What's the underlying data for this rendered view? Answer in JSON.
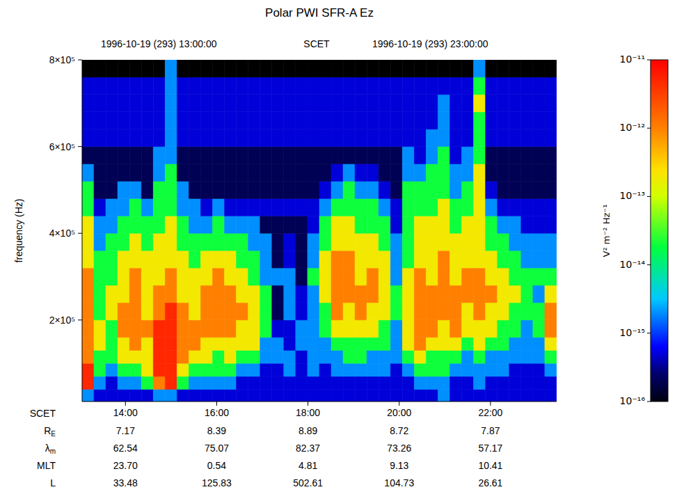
{
  "chart_data": {
    "type": "heatmap",
    "title": "Polar PWI SFR-A Ez",
    "top_labels": [
      "1996-10-19 (293) 13:00:00",
      "SCET",
      "1996-10-19 (293) 23:00:00"
    ],
    "xlabel": "SCET",
    "ylabel": "frequency (Hz)",
    "xlim": [
      13.05,
      23.45
    ],
    "xticks": [
      {
        "value": 14,
        "label": "14:00"
      },
      {
        "value": 16,
        "label": "16:00"
      },
      {
        "value": 18,
        "label": "18:00"
      },
      {
        "value": 20,
        "label": "20:00"
      },
      {
        "value": 22,
        "label": "22:00"
      }
    ],
    "ylim": [
      12000,
      800000
    ],
    "yticks": [
      {
        "value": 200000,
        "label": "2×10⁵"
      },
      {
        "value": 400000,
        "label": "4×10⁵"
      },
      {
        "value": 600000,
        "label": "6×10⁵"
      },
      {
        "value": 800000,
        "label": "8×10⁵"
      }
    ],
    "ephemeris": [
      {
        "label": "R",
        "sub": "E",
        "values": [
          "7.17",
          "8.39",
          "8.89",
          "8.72",
          "7.87"
        ]
      },
      {
        "label": "λ",
        "sub": "m",
        "values": [
          "62.54",
          "75.07",
          "82.37",
          "73.26",
          "57.17"
        ]
      },
      {
        "label": "MLT",
        "values": [
          "23.70",
          "0.54",
          "4.81",
          "9.13",
          "10.41"
        ]
      },
      {
        "label": "L",
        "values": [
          "33.48",
          "125.83",
          "502.61",
          "104.73",
          "26.61"
        ]
      }
    ],
    "colorbar": {
      "lim": [
        1e-16,
        1e-11
      ],
      "log": true,
      "ticks": [
        {
          "value": 1e-16,
          "label": "10⁻¹⁶"
        },
        {
          "value": 1e-15,
          "label": "10⁻¹⁵"
        },
        {
          "value": 1e-14,
          "label": "10⁻¹⁴"
        },
        {
          "value": 1e-13,
          "label": "10⁻¹³"
        },
        {
          "value": 1e-12,
          "label": "10⁻¹²"
        },
        {
          "value": 1e-11,
          "label": "10⁻¹¹"
        }
      ],
      "label": "V² m⁻² Hz⁻¹"
    },
    "x_bins": [
      13.05,
      13.31,
      13.57,
      13.83,
      14.09,
      14.35,
      14.61,
      14.87,
      15.13,
      15.39,
      15.65,
      15.91,
      16.17,
      16.43,
      16.69,
      16.95,
      17.21,
      17.47,
      17.73,
      17.99,
      18.25,
      18.51,
      18.77,
      19.03,
      19.29,
      19.55,
      19.81,
      20.07,
      20.33,
      20.59,
      20.85,
      21.11,
      21.37,
      21.63,
      21.89,
      22.15,
      22.41,
      22.67,
      22.93,
      23.19,
      23.45
    ],
    "y_bins": [
      12000,
      40000,
      70000,
      100000,
      130000,
      160000,
      200000,
      240000,
      280000,
      320000,
      360000,
      400000,
      440000,
      480000,
      520000,
      560000,
      600000,
      640000,
      680000,
      720000,
      760000,
      800000
    ],
    "cells": [
      [
        2e-15,
        5e-12,
        5e-12,
        1e-12,
        1e-12,
        1e-12,
        1e-12,
        1e-12,
        1e-12,
        2e-13,
        2e-13,
        2e-13,
        2e-14,
        2e-14,
        2e-15,
        2e-16,
        5e-16,
        5e-16,
        5e-16,
        5e-16,
        5e-17
      ],
      [
        5e-16,
        2e-15,
        2e-14,
        2e-14,
        2e-13,
        2e-13,
        2e-14,
        2e-14,
        2e-14,
        2e-14,
        2e-15,
        2e-15,
        5e-16,
        2e-16,
        2e-16,
        2e-16,
        5e-16,
        5e-16,
        5e-16,
        5e-16,
        5e-17
      ],
      [
        5e-16,
        5e-16,
        2e-15,
        2e-14,
        2e-14,
        2e-14,
        2e-13,
        2e-13,
        2e-14,
        2e-14,
        2e-14,
        2e-15,
        2e-15,
        2e-16,
        2e-16,
        2e-16,
        5e-16,
        5e-16,
        5e-16,
        5e-16,
        5e-17
      ],
      [
        5e-16,
        2e-15,
        2e-14,
        2e-13,
        2e-13,
        1e-12,
        1e-12,
        2e-13,
        2e-13,
        2e-13,
        2e-14,
        2e-14,
        2e-15,
        2e-15,
        2e-16,
        2e-16,
        5e-16,
        5e-16,
        5e-16,
        5e-16,
        5e-17
      ],
      [
        5e-16,
        2e-15,
        2e-14,
        2e-13,
        1e-12,
        1e-12,
        1e-12,
        1e-12,
        1e-12,
        2e-13,
        2e-13,
        2e-14,
        2e-14,
        2e-15,
        2e-16,
        2e-16,
        5e-16,
        5e-16,
        5e-16,
        5e-16,
        5e-17
      ],
      [
        5e-16,
        2e-14,
        2e-13,
        2e-13,
        2e-13,
        1e-12,
        2e-13,
        2e-13,
        2e-13,
        2e-13,
        2e-14,
        2e-14,
        2e-15,
        2e-16,
        2e-16,
        2e-16,
        5e-16,
        5e-16,
        5e-16,
        5e-16,
        5e-17
      ],
      [
        2e-15,
        1e-12,
        5e-12,
        5e-12,
        5e-12,
        5e-12,
        1e-12,
        1e-12,
        2e-13,
        2e-13,
        2e-13,
        2e-14,
        2e-14,
        2e-14,
        2e-15,
        2e-15,
        5e-16,
        5e-16,
        5e-16,
        5e-16,
        5e-17
      ],
      [
        2e-15,
        5e-12,
        5e-12,
        5e-12,
        5e-12,
        5e-12,
        5e-12,
        1e-12,
        1e-12,
        2e-13,
        2e-13,
        2e-13,
        2e-14,
        2e-14,
        2e-14,
        2e-15,
        2e-15,
        2e-15,
        2e-15,
        2e-15,
        2e-15
      ],
      [
        5e-16,
        2e-14,
        2e-13,
        1e-12,
        1e-12,
        1e-12,
        1e-12,
        2e-13,
        2e-13,
        2e-13,
        2e-14,
        2e-14,
        2e-15,
        2e-15,
        2e-16,
        2e-16,
        5e-16,
        5e-16,
        5e-16,
        5e-16,
        5e-17
      ],
      [
        5e-16,
        2e-15,
        2e-14,
        2e-13,
        1e-12,
        1e-12,
        2e-13,
        2e-13,
        2e-13,
        2e-14,
        2e-14,
        2e-15,
        2e-15,
        2e-16,
        2e-16,
        2e-16,
        5e-16,
        5e-16,
        5e-16,
        5e-16,
        5e-17
      ],
      [
        5e-16,
        2e-15,
        2e-14,
        2e-13,
        2e-13,
        1e-12,
        1e-12,
        1e-12,
        2e-13,
        2e-13,
        2e-14,
        2e-15,
        5e-16,
        2e-16,
        2e-16,
        2e-16,
        5e-16,
        5e-16,
        5e-16,
        5e-16,
        5e-17
      ],
      [
        5e-16,
        2e-15,
        2e-14,
        2e-14,
        2e-13,
        1e-12,
        1e-12,
        1e-12,
        1e-12,
        2e-13,
        2e-14,
        2e-14,
        2e-15,
        2e-16,
        2e-16,
        2e-16,
        5e-16,
        5e-16,
        5e-16,
        5e-16,
        5e-17
      ],
      [
        5e-16,
        2e-15,
        2e-14,
        2e-13,
        2e-13,
        1e-12,
        1e-12,
        1e-12,
        2e-13,
        2e-13,
        2e-14,
        2e-15,
        5e-16,
        2e-16,
        2e-16,
        2e-16,
        5e-16,
        5e-16,
        5e-16,
        5e-16,
        5e-17
      ],
      [
        5e-16,
        5e-16,
        2e-15,
        2e-14,
        2e-13,
        2e-13,
        1e-12,
        2e-13,
        2e-13,
        2e-14,
        2e-14,
        2e-15,
        5e-16,
        2e-16,
        2e-16,
        2e-16,
        5e-16,
        5e-16,
        5e-16,
        5e-16,
        5e-17
      ],
      [
        5e-16,
        5e-16,
        2e-15,
        2e-14,
        2e-13,
        2e-13,
        2e-13,
        2e-13,
        2e-14,
        2e-14,
        2e-15,
        2e-15,
        5e-16,
        2e-16,
        2e-16,
        2e-16,
        5e-16,
        5e-16,
        5e-16,
        5e-16,
        5e-17
      ],
      [
        5e-16,
        5e-16,
        5e-16,
        2e-15,
        2e-15,
        2e-14,
        2e-14,
        2e-14,
        2e-15,
        2e-15,
        2e-15,
        2e-16,
        5e-16,
        2e-16,
        2e-16,
        2e-16,
        5e-16,
        5e-16,
        5e-16,
        5e-16,
        5e-17
      ],
      [
        5e-16,
        5e-16,
        5e-16,
        2e-15,
        2e-15,
        5e-16,
        2e-16,
        2e-16,
        2e-15,
        2e-16,
        2e-16,
        2e-16,
        5e-16,
        2e-16,
        2e-16,
        2e-16,
        5e-16,
        5e-16,
        5e-16,
        5e-16,
        5e-17
      ],
      [
        5e-16,
        5e-16,
        2e-15,
        2e-15,
        5e-16,
        5e-16,
        2e-15,
        2e-15,
        2e-15,
        5e-16,
        5e-16,
        2e-16,
        5e-16,
        2e-16,
        2e-16,
        2e-16,
        5e-16,
        5e-16,
        5e-16,
        5e-16,
        5e-17
      ],
      [
        5e-16,
        5e-16,
        5e-16,
        5e-16,
        2e-15,
        2e-15,
        5e-16,
        5e-16,
        2e-16,
        2e-16,
        2e-16,
        2e-16,
        5e-16,
        2e-16,
        2e-16,
        2e-16,
        5e-16,
        5e-16,
        5e-16,
        5e-16,
        5e-17
      ],
      [
        5e-16,
        5e-16,
        2e-15,
        2e-15,
        2e-15,
        2e-15,
        2e-15,
        2e-15,
        2e-14,
        2e-15,
        2e-15,
        5e-16,
        5e-16,
        2e-16,
        2e-16,
        2e-16,
        5e-16,
        5e-16,
        5e-16,
        5e-16,
        5e-17
      ],
      [
        5e-16,
        5e-16,
        5e-16,
        2e-15,
        2e-15,
        2e-14,
        2e-14,
        2e-13,
        2e-13,
        2e-13,
        2e-14,
        2e-14,
        2e-15,
        5e-16,
        2e-16,
        2e-16,
        5e-16,
        5e-16,
        5e-16,
        5e-16,
        5e-17
      ],
      [
        5e-16,
        5e-16,
        2e-15,
        2e-15,
        2e-14,
        2e-13,
        1e-12,
        1e-12,
        1e-12,
        1e-12,
        2e-13,
        2e-13,
        2e-14,
        2e-15,
        5e-16,
        2e-16,
        5e-16,
        5e-16,
        5e-16,
        5e-16,
        5e-17
      ],
      [
        5e-16,
        5e-16,
        2e-15,
        2e-14,
        2e-14,
        2e-13,
        2e-13,
        1e-12,
        1e-12,
        1e-12,
        2e-13,
        2e-13,
        2e-14,
        2e-14,
        2e-15,
        2e-16,
        5e-16,
        5e-16,
        5e-16,
        5e-16,
        5e-17
      ],
      [
        5e-16,
        5e-16,
        2e-15,
        2e-14,
        2e-14,
        2e-13,
        1e-12,
        1e-12,
        2e-13,
        2e-13,
        2e-13,
        2e-14,
        2e-14,
        2e-15,
        5e-16,
        2e-16,
        5e-16,
        5e-16,
        5e-16,
        5e-16,
        5e-17
      ],
      [
        5e-16,
        5e-16,
        2e-15,
        2e-15,
        2e-14,
        2e-13,
        2e-13,
        1e-12,
        1e-12,
        2e-13,
        2e-13,
        2e-14,
        2e-14,
        2e-15,
        5e-16,
        2e-16,
        5e-16,
        5e-16,
        5e-16,
        5e-16,
        5e-17
      ],
      [
        5e-16,
        5e-16,
        2e-15,
        2e-15,
        2e-14,
        2e-14,
        2e-13,
        2e-13,
        2e-13,
        2e-13,
        2e-14,
        2e-14,
        2e-15,
        5e-16,
        2e-16,
        2e-16,
        5e-16,
        5e-16,
        5e-16,
        5e-16,
        5e-17
      ],
      [
        5e-16,
        5e-16,
        5e-16,
        2e-15,
        2e-15,
        2e-15,
        2e-14,
        2e-14,
        2e-15,
        2e-15,
        2e-15,
        5e-16,
        5e-16,
        2e-16,
        2e-16,
        2e-16,
        5e-16,
        5e-16,
        5e-16,
        5e-16,
        5e-17
      ],
      [
        5e-16,
        5e-16,
        2e-15,
        2e-14,
        2e-13,
        2e-13,
        2e-13,
        2e-13,
        2e-13,
        2e-14,
        2e-14,
        2e-14,
        2e-14,
        2e-14,
        2e-15,
        2e-15,
        5e-16,
        5e-16,
        5e-16,
        5e-16,
        5e-17
      ],
      [
        5e-16,
        2e-15,
        2e-14,
        2e-13,
        1e-12,
        1e-12,
        1e-12,
        1e-12,
        1e-12,
        2e-13,
        2e-13,
        2e-13,
        2e-14,
        2e-14,
        2e-15,
        5e-16,
        5e-16,
        5e-16,
        5e-16,
        5e-16,
        5e-17
      ],
      [
        5e-16,
        2e-15,
        2e-14,
        2e-14,
        2e-13,
        1e-12,
        1e-12,
        1e-12,
        2e-13,
        2e-13,
        2e-13,
        2e-13,
        2e-14,
        2e-14,
        2e-14,
        2e-15,
        2e-15,
        5e-16,
        5e-16,
        5e-16,
        5e-17
      ],
      [
        2e-15,
        2e-15,
        2e-14,
        2e-14,
        2e-13,
        2e-13,
        1e-12,
        1e-12,
        1e-12,
        1e-12,
        2e-13,
        2e-13,
        2e-13,
        2e-14,
        2e-14,
        2e-14,
        2e-15,
        2e-15,
        2e-15,
        5e-16,
        5e-17
      ],
      [
        5e-16,
        5e-16,
        2e-15,
        2e-14,
        2e-13,
        1e-12,
        1e-12,
        1e-12,
        2e-13,
        2e-13,
        2e-13,
        2e-14,
        2e-14,
        2e-15,
        2e-15,
        5e-16,
        5e-16,
        5e-16,
        5e-16,
        5e-16,
        5e-17
      ],
      [
        5e-16,
        5e-16,
        2e-15,
        2e-15,
        2e-14,
        2e-13,
        2e-13,
        1e-12,
        1e-12,
        2e-13,
        2e-13,
        2e-13,
        2e-14,
        2e-14,
        2e-15,
        2e-15,
        5e-16,
        5e-16,
        5e-16,
        5e-16,
        5e-17
      ],
      [
        5e-16,
        2e-15,
        2e-15,
        2e-14,
        2e-13,
        2e-13,
        1e-12,
        1e-12,
        1e-12,
        2e-13,
        2e-13,
        2e-13,
        2e-13,
        2e-13,
        2e-13,
        2e-14,
        2e-14,
        2e-14,
        2e-13,
        2e-14,
        2e-15
      ],
      [
        5e-16,
        5e-16,
        2e-15,
        2e-15,
        2e-14,
        2e-13,
        2e-13,
        1e-12,
        2e-13,
        2e-13,
        2e-14,
        2e-14,
        2e-15,
        5e-16,
        2e-16,
        2e-16,
        5e-16,
        5e-16,
        5e-16,
        5e-16,
        5e-17
      ],
      [
        5e-16,
        5e-16,
        2e-15,
        2e-15,
        2e-14,
        2e-14,
        2e-13,
        2e-13,
        2e-13,
        2e-14,
        2e-14,
        2e-15,
        5e-16,
        2e-16,
        2e-16,
        2e-16,
        5e-16,
        5e-16,
        5e-16,
        5e-16,
        5e-17
      ],
      [
        5e-16,
        5e-16,
        5e-16,
        2e-15,
        2e-15,
        2e-14,
        2e-14,
        2e-13,
        2e-14,
        2e-14,
        2e-15,
        2e-15,
        5e-16,
        2e-16,
        2e-16,
        2e-16,
        5e-16,
        5e-16,
        5e-16,
        5e-16,
        5e-17
      ],
      [
        5e-16,
        5e-16,
        5e-16,
        2e-15,
        2e-15,
        2e-15,
        2e-14,
        2e-14,
        2e-14,
        2e-15,
        2e-15,
        5e-16,
        5e-16,
        2e-16,
        2e-16,
        2e-16,
        5e-16,
        5e-16,
        5e-16,
        5e-16,
        5e-17
      ],
      [
        5e-16,
        5e-16,
        5e-16,
        2e-15,
        2e-15,
        2e-14,
        2e-14,
        2e-15,
        2e-14,
        2e-15,
        2e-15,
        5e-16,
        5e-16,
        2e-16,
        2e-16,
        2e-16,
        5e-16,
        5e-16,
        5e-16,
        5e-16,
        5e-17
      ],
      [
        5e-16,
        5e-16,
        2e-15,
        2e-14,
        2e-13,
        1e-12,
        1e-12,
        2e-13,
        2e-14,
        2e-15,
        2e-15,
        5e-16,
        5e-16,
        2e-16,
        2e-16,
        2e-16,
        5e-16,
        5e-16,
        5e-16,
        5e-16,
        5e-17
      ]
    ]
  }
}
